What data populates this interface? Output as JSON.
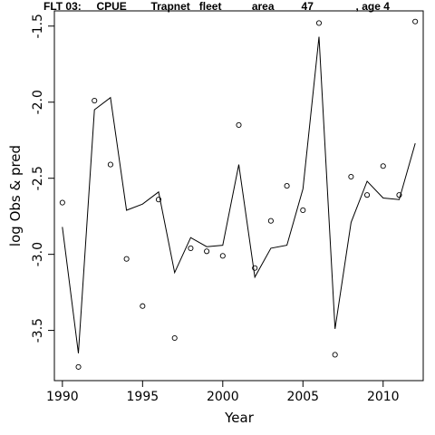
{
  "chart_data": {
    "type": "line",
    "title": "FLT 03:     CPUE        Trapnet   fleet          area         47              , age 4",
    "xlabel": "Year",
    "ylabel": "log Obs & pred",
    "xlim": [
      1989.5,
      2012.5
    ],
    "ylim": [
      -3.83,
      -1.4
    ],
    "xticks": [
      1990,
      1995,
      2000,
      2005,
      2010
    ],
    "yticks": [
      -3.5,
      -3.0,
      -2.5,
      -2.0,
      -1.5
    ],
    "ytick_labels": [
      "-3.5",
      "-3.0",
      "-2.5",
      "-2.0",
      "-1.5"
    ],
    "grid": false,
    "series": [
      {
        "style": "points",
        "marker": "open-circle",
        "x": [
          1990,
          1991,
          1992,
          1993,
          1994,
          1995,
          1996,
          1997,
          1998,
          1999,
          2000,
          2001,
          2002,
          2003,
          2004,
          2005,
          2006,
          2007,
          2008,
          2009,
          2010,
          2011,
          2012
        ],
        "values": [
          -2.66,
          -3.74,
          -1.99,
          -2.41,
          -3.03,
          -3.34,
          -2.64,
          -3.55,
          -2.96,
          -2.98,
          -3.01,
          -2.15,
          -3.09,
          -2.78,
          -2.55,
          -2.71,
          -1.48,
          -3.66,
          -2.49,
          -2.61,
          -2.42,
          -2.61,
          -1.47
        ]
      },
      {
        "style": "line",
        "x": [
          1990,
          1991,
          1992,
          1993,
          1994,
          1995,
          1996,
          1997,
          1998,
          1999,
          2000,
          2001,
          2002,
          2003,
          2004,
          2005,
          2006,
          2007,
          2008,
          2009,
          2010,
          2011,
          2012
        ],
        "values": [
          -2.82,
          -3.65,
          -2.05,
          -1.97,
          -2.71,
          -2.67,
          -2.59,
          -3.12,
          -2.89,
          -2.95,
          -2.94,
          -2.41,
          -3.15,
          -2.96,
          -2.94,
          -2.57,
          -1.57,
          -3.49,
          -2.79,
          -2.52,
          -2.63,
          -2.64,
          -2.27
        ]
      }
    ]
  }
}
